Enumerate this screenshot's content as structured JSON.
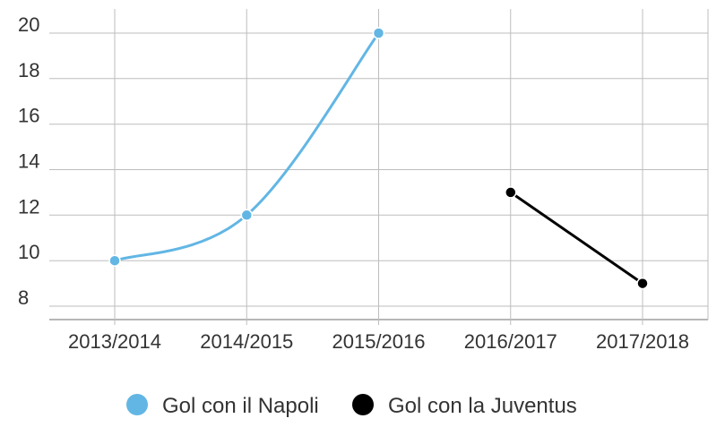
{
  "chart_data": {
    "type": "line",
    "categories": [
      "2013/2014",
      "2014/2015",
      "2015/2016",
      "2016/2017",
      "2017/2018"
    ],
    "ylim": [
      8,
      20
    ],
    "yticks": [
      8,
      10,
      12,
      14,
      16,
      18,
      20
    ],
    "grid": true,
    "legend_position": "bottom",
    "series": [
      {
        "name": "Gol con il Napoli",
        "color": "#62b6e4",
        "smooth": true,
        "values": [
          10,
          12,
          20,
          null,
          null
        ]
      },
      {
        "name": "Gol con la Juventus",
        "color": "#000000",
        "smooth": false,
        "values": [
          null,
          null,
          null,
          13,
          9
        ]
      }
    ]
  }
}
